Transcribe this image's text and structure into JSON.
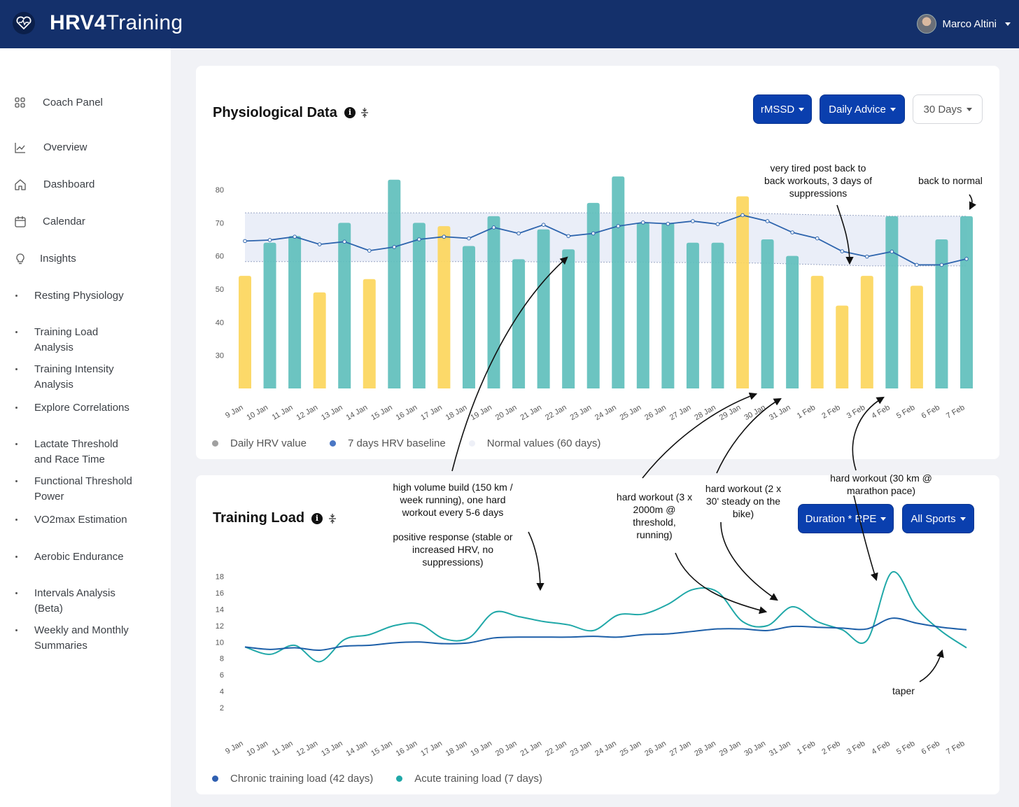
{
  "header": {
    "logo_bold": "HRV4",
    "logo_light": "Training",
    "user_name": "Marco Altini"
  },
  "sidebar": {
    "items": [
      {
        "label": "Coach Panel",
        "icon": "grid-icon"
      },
      {
        "label": "Overview",
        "icon": "chart-line-icon"
      },
      {
        "label": "Dashboard",
        "icon": "home-icon"
      },
      {
        "label": "Calendar",
        "icon": "calendar-icon"
      },
      {
        "label": "Insights",
        "icon": "lightbulb-icon"
      },
      {
        "label": "Resting Physiology"
      },
      {
        "label": "Training Load Analysis"
      },
      {
        "label": "Training Intensity Analysis"
      },
      {
        "label": "Explore Correlations"
      },
      {
        "label": "Lactate Threshold and Race Time"
      },
      {
        "label": "Functional Threshold Power"
      },
      {
        "label": "VO2max Estimation"
      },
      {
        "label": "Aerobic Endurance"
      },
      {
        "label": "Intervals Analysis (Beta)"
      },
      {
        "label": "Weekly and Monthly Summaries"
      }
    ]
  },
  "physio": {
    "title": "Physiological Data",
    "btn_metric": "rMSSD",
    "btn_advice": "Daily Advice",
    "btn_range": "30 Days",
    "legend": [
      "Daily HRV value",
      "7 days HRV baseline",
      "Normal values (60 days)"
    ]
  },
  "load": {
    "title": "Training Load",
    "btn_metric": "Duration * RPE",
    "btn_sport": "All Sports",
    "legend": [
      "Chronic training load (42 days)",
      "Acute training load (7 days)"
    ]
  },
  "annotations": {
    "tired": "very tired post back to back workouts, 3 days of suppressions",
    "normal": "back to normal",
    "build": "high volume build (150 km / week running), one hard workout every 5-6 days",
    "positive": "positive response (stable or increased HRV, no suppressions)",
    "hard1": "hard workout (3 x 2000m @ threshold, running)",
    "hard2": "hard workout (2 x 30' steady on the bike)",
    "hard3": "hard workout (30 km @ marathon pace)",
    "taper": "taper"
  },
  "colors": {
    "header": "#14306b",
    "primary_button": "#0a3fae",
    "bar_good": "#5fbfbc",
    "bar_low": "#fcd65c",
    "baseline": "#2d64ad",
    "acute": "#20a8a8",
    "chronic": "#1d5fa8"
  },
  "chart_data": [
    {
      "type": "bar",
      "categories": [
        "9 Jan",
        "10 Jan",
        "11 Jan",
        "12 Jan",
        "13 Jan",
        "14 Jan",
        "15 Jan",
        "16 Jan",
        "17 Jan",
        "18 Jan",
        "19 Jan",
        "20 Jan",
        "21 Jan",
        "22 Jan",
        "23 Jan",
        "24 Jan",
        "25 Jan",
        "26 Jan",
        "27 Jan",
        "28 Jan",
        "29 Jan",
        "30 Jan",
        "31 Jan",
        "1 Feb",
        "2 Feb",
        "3 Feb",
        "4 Feb",
        "5 Feb",
        "6 Feb",
        "7 Feb"
      ],
      "series": [
        {
          "name": "Daily HRV value",
          "values": [
            54,
            64,
            66,
            49,
            70,
            53,
            83,
            70,
            69,
            63,
            72,
            59,
            68,
            62,
            76,
            84,
            70,
            70,
            64,
            64,
            78,
            65,
            60,
            54,
            45,
            54,
            72,
            51,
            65,
            72
          ]
        },
        {
          "name": "7 days HRV baseline",
          "values": [
            64.5,
            64.8,
            65.8,
            63.5,
            64.3,
            61.6,
            62.7,
            65,
            65.8,
            65.3,
            68.6,
            66.8,
            69.4,
            66,
            66.8,
            69,
            70.1,
            69.7,
            70.5,
            69.6,
            72.3,
            70.5,
            67.1,
            65.3,
            61.4,
            59.8,
            61.3,
            57.3,
            57.3,
            59.1
          ]
        },
        {
          "name": "Normal values (60 days)",
          "values": [
            [
              58.3,
              73
            ],
            [
              58.3,
              73
            ],
            [
              58.3,
              73
            ],
            [
              58.3,
              73
            ],
            [
              58.3,
              73
            ],
            [
              58.3,
              73
            ],
            [
              58.3,
              73
            ],
            [
              58.3,
              73
            ],
            [
              58.3,
              73
            ],
            [
              58.3,
              73
            ],
            [
              58.3,
              73
            ],
            [
              58.3,
              73
            ],
            [
              58.2,
              73
            ],
            [
              58.2,
              73
            ],
            [
              58.1,
              73
            ],
            [
              58.1,
              73
            ],
            [
              58.1,
              73
            ],
            [
              58,
              73
            ],
            [
              58,
              73
            ],
            [
              58,
              73
            ],
            [
              57.9,
              73
            ],
            [
              57.8,
              72.8
            ],
            [
              57.6,
              72.6
            ],
            [
              57.4,
              72.4
            ],
            [
              57.2,
              72.3
            ],
            [
              57,
              72.2
            ],
            [
              57,
              72
            ],
            [
              57,
              72
            ],
            [
              57,
              72
            ],
            [
              57,
              72
            ]
          ]
        }
      ],
      "bar_color": [
        "low",
        "good",
        "good",
        "low",
        "good",
        "low",
        "good",
        "good",
        "low",
        "good",
        "good",
        "good",
        "good",
        "good",
        "good",
        "good",
        "good",
        "good",
        "good",
        "good",
        "low",
        "good",
        "good",
        "low",
        "low",
        "low",
        "good",
        "low",
        "good",
        "good"
      ],
      "yticks": [
        30,
        40,
        50,
        60,
        70,
        80
      ],
      "ylim": [
        20,
        88
      ]
    },
    {
      "type": "line",
      "categories": [
        "9 Jan",
        "10 Jan",
        "11 Jan",
        "12 Jan",
        "13 Jan",
        "14 Jan",
        "15 Jan",
        "16 Jan",
        "17 Jan",
        "18 Jan",
        "19 Jan",
        "20 Jan",
        "21 Jan",
        "22 Jan",
        "23 Jan",
        "24 Jan",
        "25 Jan",
        "26 Jan",
        "27 Jan",
        "28 Jan",
        "29 Jan",
        "30 Jan",
        "31 Jan",
        "1 Feb",
        "2 Feb",
        "3 Feb",
        "4 Feb",
        "5 Feb",
        "6 Feb",
        "7 Feb"
      ],
      "series": [
        {
          "name": "Chronic training load (42 days)",
          "values": [
            9.4,
            9.1,
            9.3,
            9,
            9.5,
            9.6,
            9.9,
            10,
            9.8,
            9.9,
            10.5,
            10.6,
            10.6,
            10.6,
            10.7,
            10.6,
            10.9,
            11,
            11.3,
            11.6,
            11.6,
            11.4,
            11.9,
            11.8,
            11.7,
            11.6,
            12.9,
            12.3,
            11.8,
            11.5
          ]
        },
        {
          "name": "Acute training load (7 days)",
          "values": [
            9.4,
            8.5,
            9.6,
            7.6,
            10.3,
            10.9,
            12,
            12.2,
            10.4,
            10.5,
            13.6,
            13.1,
            12.5,
            12.1,
            11.4,
            13.3,
            13.4,
            14.6,
            16.4,
            16.1,
            12.5,
            12,
            14.3,
            12.5,
            11.5,
            10.2,
            18.5,
            14.1,
            11.3,
            9.3
          ]
        }
      ],
      "yticks": [
        2,
        4,
        6,
        8,
        10,
        12,
        14,
        16,
        18
      ],
      "ylim": [
        0,
        19.5
      ]
    }
  ]
}
